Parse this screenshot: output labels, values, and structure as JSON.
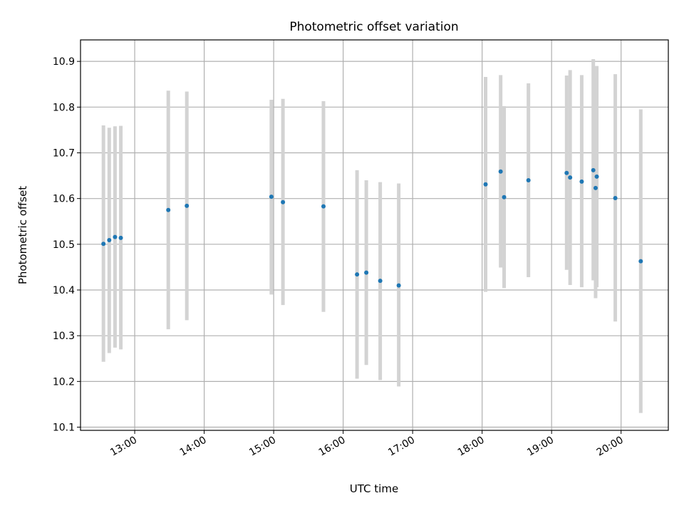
{
  "chart_data": {
    "type": "scatter",
    "title": "Photometric offset variation",
    "xlabel": "UTC time",
    "ylabel": "Photometric offset",
    "x_tick_labels": [
      "13:00",
      "14:00",
      "15:00",
      "16:00",
      "17:00",
      "18:00",
      "19:00",
      "20:00"
    ],
    "x_ticks_hours": [
      13,
      14,
      15,
      16,
      17,
      18,
      19,
      20
    ],
    "y_ticks": [
      10.1,
      10.2,
      10.3,
      10.4,
      10.5,
      10.6,
      10.7,
      10.8,
      10.9
    ],
    "xlim_hours": [
      12.22,
      20.68
    ],
    "ylim": [
      10.093,
      10.947
    ],
    "grid": true,
    "marker_color": "#1f77b4",
    "errorbar_color": "#d3d3d3",
    "points": [
      {
        "time": "12:33",
        "y": 10.501,
        "ylo": 10.243,
        "yhi": 10.76
      },
      {
        "time": "12:38",
        "y": 10.509,
        "ylo": 10.262,
        "yhi": 10.755
      },
      {
        "time": "12:43",
        "y": 10.516,
        "ylo": 10.274,
        "yhi": 10.758
      },
      {
        "time": "12:48",
        "y": 10.514,
        "ylo": 10.27,
        "yhi": 10.759
      },
      {
        "time": "13:29",
        "y": 10.575,
        "ylo": 10.314,
        "yhi": 10.836
      },
      {
        "time": "13:45",
        "y": 10.584,
        "ylo": 10.334,
        "yhi": 10.834
      },
      {
        "time": "14:58",
        "y": 10.604,
        "ylo": 10.39,
        "yhi": 10.816
      },
      {
        "time": "15:08",
        "y": 10.592,
        "ylo": 10.367,
        "yhi": 10.818
      },
      {
        "time": "15:43",
        "y": 10.583,
        "ylo": 10.352,
        "yhi": 10.813
      },
      {
        "time": "16:12",
        "y": 10.434,
        "ylo": 10.206,
        "yhi": 10.662
      },
      {
        "time": "16:20",
        "y": 10.438,
        "ylo": 10.236,
        "yhi": 10.64
      },
      {
        "time": "16:32",
        "y": 10.42,
        "ylo": 10.203,
        "yhi": 10.636
      },
      {
        "time": "16:48",
        "y": 10.41,
        "ylo": 10.189,
        "yhi": 10.633
      },
      {
        "time": "18:03",
        "y": 10.631,
        "ylo": 10.396,
        "yhi": 10.866
      },
      {
        "time": "18:16",
        "y": 10.659,
        "ylo": 10.449,
        "yhi": 10.87
      },
      {
        "time": "18:19",
        "y": 10.603,
        "ylo": 10.404,
        "yhi": 10.802
      },
      {
        "time": "18:40",
        "y": 10.64,
        "ylo": 10.428,
        "yhi": 10.852
      },
      {
        "time": "19:13",
        "y": 10.656,
        "ylo": 10.444,
        "yhi": 10.869
      },
      {
        "time": "19:16",
        "y": 10.646,
        "ylo": 10.411,
        "yhi": 10.881
      },
      {
        "time": "19:26",
        "y": 10.637,
        "ylo": 10.406,
        "yhi": 10.87
      },
      {
        "time": "19:36",
        "y": 10.662,
        "ylo": 10.421,
        "yhi": 10.905
      },
      {
        "time": "19:38",
        "y": 10.623,
        "ylo": 10.382,
        "yhi": 10.864
      },
      {
        "time": "19:39",
        "y": 10.648,
        "ylo": 10.406,
        "yhi": 10.89
      },
      {
        "time": "19:55",
        "y": 10.601,
        "ylo": 10.331,
        "yhi": 10.872
      },
      {
        "time": "20:17",
        "y": 10.463,
        "ylo": 10.131,
        "yhi": 10.795
      }
    ]
  }
}
